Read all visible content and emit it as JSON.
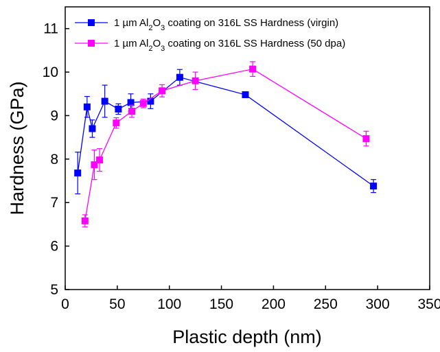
{
  "chart_data": {
    "type": "line",
    "xlabel": "Plastic depth (nm)",
    "ylabel": "Hardness (GPa)",
    "xlim": [
      0,
      350
    ],
    "ylim": [
      5,
      11.5
    ],
    "x_ticks": [
      0,
      50,
      100,
      150,
      200,
      250,
      300,
      350
    ],
    "y_ticks": [
      5,
      6,
      7,
      8,
      9,
      10,
      11
    ],
    "grid": false,
    "legend_position": "top-left",
    "series": [
      {
        "name_parts": [
          "1 µm Al",
          "2",
          "O",
          "3",
          " coating on 316L SS Hardness (virgin)"
        ],
        "color": "#0000ff",
        "marker": "square",
        "x": [
          12,
          21,
          26,
          38,
          51,
          63,
          82,
          110,
          173,
          296
        ],
        "y": [
          7.68,
          9.2,
          8.7,
          9.33,
          9.15,
          9.3,
          9.33,
          9.88,
          9.48,
          7.38
        ],
        "error": [
          0.48,
          0.24,
          0.2,
          0.37,
          0.12,
          0.2,
          0.17,
          0.18,
          0.06,
          0.15
        ]
      },
      {
        "name_parts": [
          "1 µm Al",
          "2",
          "O",
          "3",
          " coating on 316L SS Hardness (50 dpa)"
        ],
        "color": "#ff00ff",
        "marker": "square",
        "x": [
          19,
          28,
          33,
          49,
          64,
          75,
          93,
          125,
          180,
          289
        ],
        "y": [
          6.58,
          7.87,
          7.98,
          8.83,
          9.1,
          9.28,
          9.57,
          9.8,
          10.07,
          8.47
        ],
        "error": [
          0.14,
          0.34,
          0.26,
          0.12,
          0.14,
          0.1,
          0.14,
          0.2,
          0.17,
          0.17
        ]
      }
    ]
  }
}
